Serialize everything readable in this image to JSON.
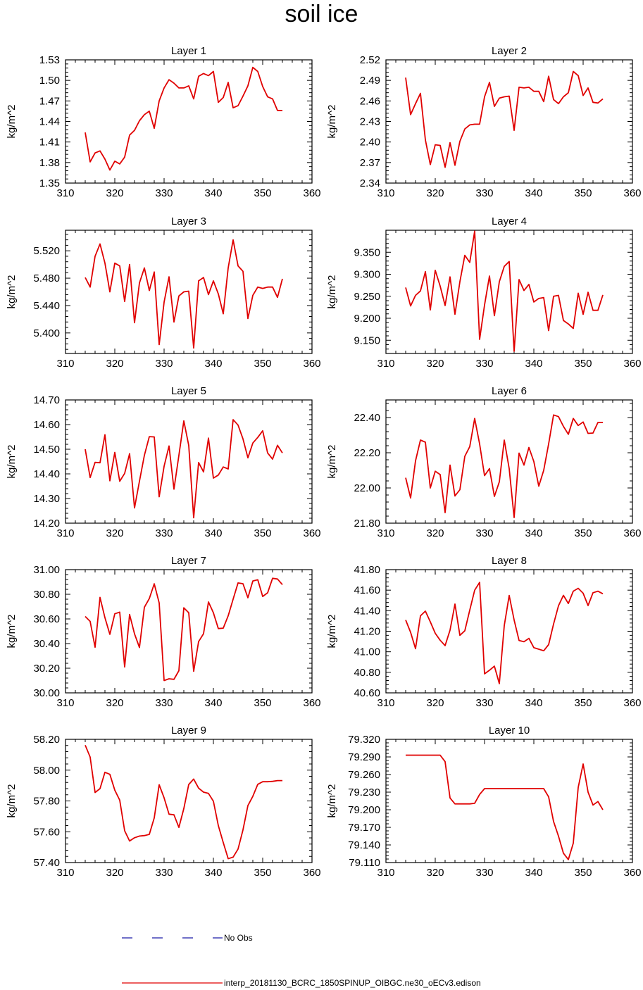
{
  "title": "soil ice",
  "legend": [
    {
      "label": "No Obs",
      "color": "#1a1aa8",
      "style": "dashed"
    },
    {
      "label": "interp_20181130_BCRC_1850SPINUP_OIBGC.ne30_oECv3.edison",
      "color": "#e00000",
      "style": "solid"
    }
  ],
  "chart_data": [
    {
      "type": "line",
      "title": "Layer 1",
      "ylabel": "kg/m^2",
      "xlim": [
        310,
        360
      ],
      "xticks": [
        "310",
        "320",
        "330",
        "340",
        "350",
        "360"
      ],
      "ylim": [
        1.35,
        1.53
      ],
      "yticks": [
        "1.35",
        "1.38",
        "1.41",
        "1.44",
        "1.47",
        "1.50",
        "1.53"
      ],
      "x": [
        314,
        315,
        316,
        317,
        318,
        319,
        320,
        321,
        322,
        323,
        324,
        325,
        326,
        327,
        328,
        329,
        330,
        331,
        332,
        333,
        334,
        335,
        336,
        337,
        338,
        339,
        340,
        341,
        342,
        343,
        344,
        345,
        346,
        347,
        348,
        349,
        350,
        351,
        352,
        353,
        354
      ],
      "series": [
        {
          "color": "#e00000",
          "values": [
            1.424,
            1.381,
            1.394,
            1.397,
            1.385,
            1.369,
            1.382,
            1.378,
            1.388,
            1.42,
            1.427,
            1.441,
            1.45,
            1.455,
            1.43,
            1.47,
            1.489,
            1.501,
            1.496,
            1.489,
            1.489,
            1.492,
            1.473,
            1.506,
            1.51,
            1.507,
            1.513,
            1.468,
            1.475,
            1.497,
            1.46,
            1.463,
            1.477,
            1.492,
            1.519,
            1.513,
            1.491,
            1.476,
            1.473,
            1.456,
            1.456
          ]
        }
      ]
    },
    {
      "type": "line",
      "title": "Layer 2",
      "ylabel": "kg/m^2",
      "xlim": [
        310,
        360
      ],
      "xticks": [
        "310",
        "320",
        "330",
        "340",
        "350",
        "360"
      ],
      "ylim": [
        2.34,
        2.52
      ],
      "yticks": [
        "2.34",
        "2.37",
        "2.40",
        "2.43",
        "2.46",
        "2.49",
        "2.52"
      ],
      "x": [
        314,
        315,
        316,
        317,
        318,
        319,
        320,
        321,
        322,
        323,
        324,
        325,
        326,
        327,
        328,
        329,
        330,
        331,
        332,
        333,
        334,
        335,
        336,
        337,
        338,
        339,
        340,
        341,
        342,
        343,
        344,
        345,
        346,
        347,
        348,
        349,
        350,
        351,
        352,
        353,
        354
      ],
      "series": [
        {
          "color": "#e00000",
          "values": [
            2.494,
            2.44,
            2.456,
            2.471,
            2.403,
            2.367,
            2.396,
            2.395,
            2.363,
            2.399,
            2.366,
            2.401,
            2.419,
            2.425,
            2.426,
            2.426,
            2.466,
            2.487,
            2.452,
            2.464,
            2.466,
            2.467,
            2.417,
            2.48,
            2.479,
            2.48,
            2.474,
            2.474,
            2.459,
            2.496,
            2.462,
            2.456,
            2.466,
            2.472,
            2.503,
            2.497,
            2.468,
            2.479,
            2.458,
            2.457,
            2.463
          ]
        }
      ]
    },
    {
      "type": "line",
      "title": "Layer 3",
      "ylabel": "kg/m^2",
      "xlim": [
        310,
        360
      ],
      "xticks": [
        "310",
        "320",
        "330",
        "340",
        "350",
        "360"
      ],
      "ylim": [
        5.37,
        5.55
      ],
      "yticks": [
        "5.400",
        "5.440",
        "5.480",
        "5.520"
      ],
      "x": [
        314,
        315,
        316,
        317,
        318,
        319,
        320,
        321,
        322,
        323,
        324,
        325,
        326,
        327,
        328,
        329,
        330,
        331,
        332,
        333,
        334,
        335,
        336,
        337,
        338,
        339,
        340,
        341,
        342,
        343,
        344,
        345,
        346,
        347,
        348,
        349,
        350,
        351,
        352,
        353,
        354
      ],
      "series": [
        {
          "color": "#e00000",
          "values": [
            5.481,
            5.467,
            5.512,
            5.53,
            5.502,
            5.46,
            5.502,
            5.498,
            5.446,
            5.5,
            5.415,
            5.473,
            5.495,
            5.462,
            5.489,
            5.383,
            5.445,
            5.482,
            5.416,
            5.454,
            5.46,
            5.461,
            5.378,
            5.476,
            5.481,
            5.456,
            5.476,
            5.457,
            5.428,
            5.495,
            5.536,
            5.498,
            5.49,
            5.421,
            5.455,
            5.467,
            5.465,
            5.467,
            5.467,
            5.452,
            5.479
          ]
        }
      ]
    },
    {
      "type": "line",
      "title": "Layer 4",
      "ylabel": "kg/m^2",
      "xlim": [
        310,
        360
      ],
      "xticks": [
        "310",
        "320",
        "330",
        "340",
        "350",
        "360"
      ],
      "ylim": [
        9.12,
        9.4
      ],
      "yticks": [
        "9.150",
        "9.200",
        "9.250",
        "9.300",
        "9.350"
      ],
      "x": [
        314,
        315,
        316,
        317,
        318,
        319,
        320,
        321,
        322,
        323,
        324,
        325,
        326,
        327,
        328,
        329,
        330,
        331,
        332,
        333,
        334,
        335,
        336,
        337,
        338,
        339,
        340,
        341,
        342,
        343,
        344,
        345,
        346,
        347,
        348,
        349,
        350,
        351,
        352,
        353,
        354
      ],
      "series": [
        {
          "color": "#e00000",
          "values": [
            9.27,
            9.228,
            9.252,
            9.262,
            9.306,
            9.219,
            9.309,
            9.273,
            9.229,
            9.294,
            9.209,
            9.283,
            9.343,
            9.327,
            9.398,
            9.152,
            9.23,
            9.296,
            9.206,
            9.283,
            9.318,
            9.329,
            9.125,
            9.288,
            9.263,
            9.277,
            9.237,
            9.245,
            9.247,
            9.172,
            9.25,
            9.252,
            9.195,
            9.187,
            9.177,
            9.257,
            9.209,
            9.259,
            9.218,
            9.218,
            9.253
          ]
        }
      ]
    },
    {
      "type": "line",
      "title": "Layer 5",
      "ylabel": "kg/m^2",
      "xlim": [
        310,
        360
      ],
      "xticks": [
        "310",
        "320",
        "330",
        "340",
        "350",
        "360"
      ],
      "ylim": [
        14.2,
        14.7
      ],
      "yticks": [
        "14.20",
        "14.30",
        "14.40",
        "14.50",
        "14.60",
        "14.70"
      ],
      "x": [
        314,
        315,
        316,
        317,
        318,
        319,
        320,
        321,
        322,
        323,
        324,
        325,
        326,
        327,
        328,
        329,
        330,
        331,
        332,
        333,
        334,
        335,
        336,
        337,
        338,
        339,
        340,
        341,
        342,
        343,
        344,
        345,
        346,
        347,
        348,
        349,
        350,
        351,
        352,
        353,
        354
      ],
      "series": [
        {
          "color": "#e00000",
          "values": [
            14.5,
            14.385,
            14.447,
            14.445,
            14.559,
            14.372,
            14.487,
            14.37,
            14.402,
            14.482,
            14.262,
            14.37,
            14.475,
            14.551,
            14.55,
            14.307,
            14.431,
            14.513,
            14.338,
            14.475,
            14.615,
            14.515,
            14.222,
            14.446,
            14.408,
            14.545,
            14.383,
            14.395,
            14.428,
            14.42,
            14.62,
            14.598,
            14.542,
            14.465,
            14.525,
            14.548,
            14.575,
            14.485,
            14.46,
            14.516,
            14.485
          ]
        }
      ]
    },
    {
      "type": "line",
      "title": "Layer 6",
      "ylabel": "kg/m^2",
      "xlim": [
        310,
        360
      ],
      "xticks": [
        "310",
        "320",
        "330",
        "340",
        "350",
        "360"
      ],
      "ylim": [
        21.8,
        22.5
      ],
      "yticks": [
        "21.80",
        "22.00",
        "22.20",
        "22.40"
      ],
      "x": [
        314,
        315,
        316,
        317,
        318,
        319,
        320,
        321,
        322,
        323,
        324,
        325,
        326,
        327,
        328,
        329,
        330,
        331,
        332,
        333,
        334,
        335,
        336,
        337,
        338,
        339,
        340,
        341,
        342,
        343,
        344,
        345,
        346,
        347,
        348,
        349,
        350,
        351,
        352,
        353,
        354
      ],
      "series": [
        {
          "color": "#e00000",
          "values": [
            22.058,
            21.943,
            22.154,
            22.272,
            22.26,
            22.0,
            22.095,
            22.076,
            21.86,
            22.13,
            21.955,
            21.99,
            22.18,
            22.235,
            22.395,
            22.25,
            22.07,
            22.11,
            21.952,
            22.035,
            22.272,
            22.11,
            21.832,
            22.198,
            22.13,
            22.23,
            22.15,
            22.01,
            22.1,
            22.25,
            22.415,
            22.405,
            22.35,
            22.305,
            22.395,
            22.355,
            22.375,
            22.31,
            22.312,
            22.372,
            22.372
          ]
        }
      ]
    },
    {
      "type": "line",
      "title": "Layer 7",
      "ylabel": "kg/m^2",
      "xlim": [
        310,
        360
      ],
      "xticks": [
        "310",
        "320",
        "330",
        "340",
        "350",
        "360"
      ],
      "ylim": [
        30.0,
        31.0
      ],
      "yticks": [
        "30.00",
        "30.20",
        "30.40",
        "30.60",
        "30.80",
        "31.00"
      ],
      "x": [
        314,
        315,
        316,
        317,
        318,
        319,
        320,
        321,
        322,
        323,
        324,
        325,
        326,
        327,
        328,
        329,
        330,
        331,
        332,
        333,
        334,
        335,
        336,
        337,
        338,
        339,
        340,
        341,
        342,
        343,
        344,
        345,
        346,
        347,
        348,
        349,
        350,
        351,
        352,
        353,
        354
      ],
      "series": [
        {
          "color": "#e00000",
          "values": [
            30.62,
            30.58,
            30.37,
            30.775,
            30.61,
            30.475,
            30.642,
            30.655,
            30.21,
            30.636,
            30.479,
            30.368,
            30.695,
            30.765,
            30.885,
            30.73,
            30.1,
            30.114,
            30.11,
            30.18,
            30.69,
            30.65,
            30.175,
            30.416,
            30.48,
            30.738,
            30.65,
            30.522,
            30.525,
            30.625,
            30.76,
            30.892,
            30.886,
            30.772,
            30.908,
            30.918,
            30.782,
            30.812,
            30.93,
            30.924,
            30.878
          ]
        }
      ]
    },
    {
      "type": "line",
      "title": "Layer 8",
      "ylabel": "kg/m^2",
      "xlim": [
        310,
        360
      ],
      "xticks": [
        "310",
        "320",
        "330",
        "340",
        "350",
        "360"
      ],
      "ylim": [
        40.6,
        41.8
      ],
      "yticks": [
        "40.60",
        "40.80",
        "41.00",
        "41.20",
        "41.40",
        "41.60",
        "41.80"
      ],
      "x": [
        314,
        315,
        316,
        317,
        318,
        319,
        320,
        321,
        322,
        323,
        324,
        325,
        326,
        327,
        328,
        329,
        330,
        331,
        332,
        333,
        334,
        335,
        336,
        337,
        338,
        339,
        340,
        341,
        342,
        343,
        344,
        345,
        346,
        347,
        348,
        349,
        350,
        351,
        352,
        353,
        354
      ],
      "series": [
        {
          "color": "#e00000",
          "values": [
            41.31,
            41.19,
            41.03,
            41.35,
            41.396,
            41.292,
            41.18,
            41.112,
            41.06,
            41.21,
            41.465,
            41.16,
            41.205,
            41.405,
            41.6,
            41.676,
            40.785,
            40.82,
            40.86,
            40.69,
            41.255,
            41.548,
            41.31,
            41.11,
            41.098,
            41.131,
            41.04,
            41.025,
            41.01,
            41.07,
            41.27,
            41.448,
            41.55,
            41.47,
            41.59,
            41.618,
            41.57,
            41.45,
            41.575,
            41.59,
            41.565
          ]
        }
      ]
    },
    {
      "type": "line",
      "title": "Layer 9",
      "ylabel": "kg/m^2",
      "xlim": [
        310,
        360
      ],
      "xticks": [
        "310",
        "320",
        "330",
        "340",
        "350",
        "360"
      ],
      "ylim": [
        57.4,
        58.2
      ],
      "yticks": [
        "57.40",
        "57.60",
        "57.80",
        "58.00",
        "58.20"
      ],
      "x": [
        314,
        315,
        316,
        317,
        318,
        319,
        320,
        321,
        322,
        323,
        324,
        325,
        326,
        327,
        328,
        329,
        330,
        331,
        332,
        333,
        334,
        335,
        336,
        337,
        338,
        339,
        340,
        341,
        342,
        343,
        344,
        345,
        346,
        347,
        348,
        349,
        350,
        351,
        352,
        353,
        354
      ],
      "series": [
        {
          "color": "#e00000",
          "values": [
            58.162,
            58.085,
            57.855,
            57.88,
            57.986,
            57.973,
            57.87,
            57.805,
            57.606,
            57.54,
            57.561,
            57.572,
            57.575,
            57.583,
            57.69,
            57.905,
            57.82,
            57.714,
            57.71,
            57.628,
            57.75,
            57.907,
            57.942,
            57.883,
            57.857,
            57.849,
            57.798,
            57.64,
            57.53,
            57.425,
            57.435,
            57.488,
            57.612,
            57.77,
            57.83,
            57.908,
            57.925,
            57.925,
            57.927,
            57.932,
            57.932
          ]
        }
      ]
    },
    {
      "type": "line",
      "title": "Layer 10",
      "ylabel": "kg/m^2",
      "xlim": [
        310,
        360
      ],
      "xticks": [
        "310",
        "320",
        "330",
        "340",
        "350",
        "360"
      ],
      "ylim": [
        79.11,
        79.32
      ],
      "yticks": [
        "79.110",
        "79.140",
        "79.170",
        "79.200",
        "79.230",
        "79.260",
        "79.290",
        "79.320"
      ],
      "x": [
        314,
        315,
        316,
        317,
        318,
        319,
        320,
        321,
        322,
        323,
        324,
        325,
        326,
        327,
        328,
        329,
        330,
        331,
        332,
        333,
        334,
        335,
        336,
        337,
        338,
        339,
        340,
        341,
        342,
        343,
        344,
        345,
        346,
        347,
        348,
        349,
        350,
        351,
        352,
        353,
        354
      ],
      "series": [
        {
          "color": "#e00000",
          "values": [
            79.293,
            79.293,
            79.293,
            79.293,
            79.293,
            79.293,
            79.293,
            79.293,
            79.282,
            79.22,
            79.21,
            79.21,
            79.21,
            79.21,
            79.211,
            79.226,
            79.236,
            79.236,
            79.236,
            79.236,
            79.236,
            79.236,
            79.236,
            79.236,
            79.236,
            79.236,
            79.236,
            79.236,
            79.236,
            79.222,
            79.18,
            79.155,
            79.126,
            79.115,
            79.143,
            79.238,
            79.278,
            79.23,
            79.208,
            79.214,
            79.2
          ]
        }
      ]
    }
  ]
}
